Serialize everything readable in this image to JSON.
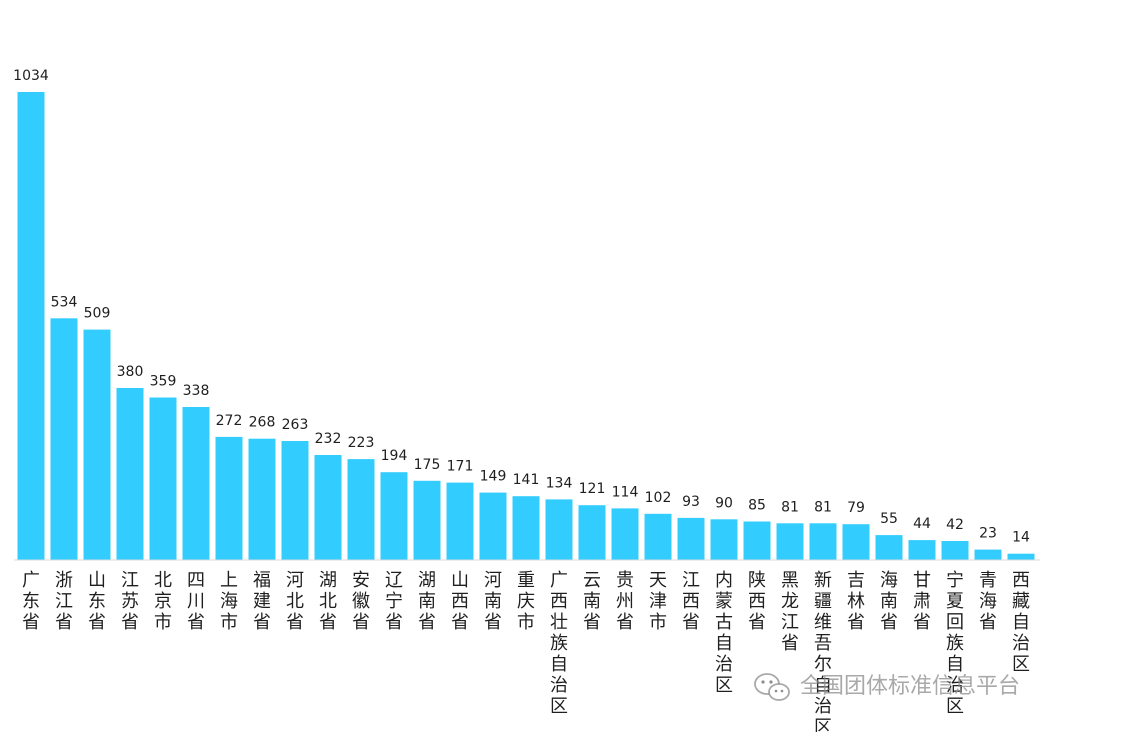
{
  "chart_data": {
    "type": "bar",
    "categories": [
      "广东省",
      "浙江省",
      "山东省",
      "江苏省",
      "北京市",
      "四川省",
      "上海市",
      "福建省",
      "河北省",
      "湖北省",
      "安徽省",
      "辽宁省",
      "湖南省",
      "山西省",
      "河南省",
      "重庆市",
      "广西壮族自治区",
      "云南省",
      "贵州省",
      "天津市",
      "江西省",
      "内蒙古自治区",
      "陕西省",
      "黑龙江省",
      "新疆维吾尔自治区",
      "吉林省",
      "海南省",
      "甘肃省",
      "宁夏回族自治区",
      "青海省",
      "西藏自治区"
    ],
    "values": [
      1034,
      534,
      509,
      380,
      359,
      338,
      272,
      268,
      263,
      232,
      223,
      194,
      175,
      171,
      149,
      141,
      134,
      121,
      114,
      102,
      93,
      90,
      85,
      81,
      81,
      79,
      55,
      44,
      42,
      23,
      14
    ],
    "title": "",
    "xlabel": "",
    "ylabel": "",
    "ylim": [
      0,
      1034
    ],
    "grid": false,
    "bar_color": "#33ccff",
    "data_labels": true
  },
  "watermark": {
    "text": "全国团体标准信息平台",
    "icon": "wechat-icon",
    "color": "#8c8c8c"
  }
}
